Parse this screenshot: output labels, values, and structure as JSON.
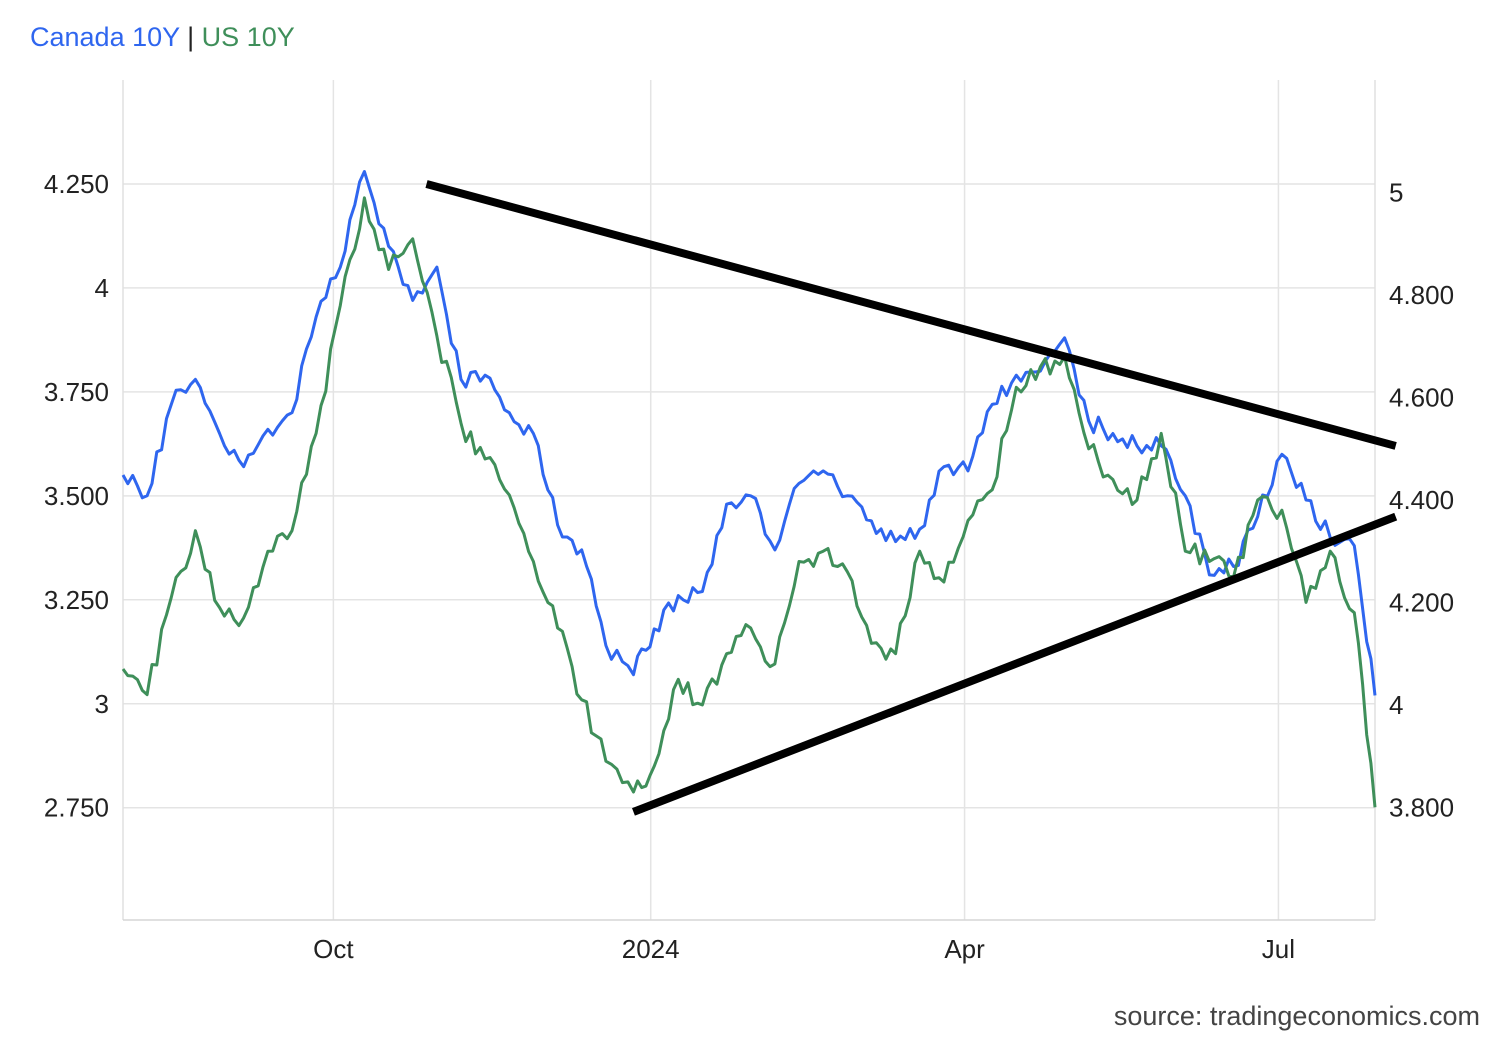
{
  "legend": {
    "separator": " | "
  },
  "source": "source: tradingeconomics.com",
  "chart_data": {
    "type": "line",
    "title": "",
    "x_tick_labels": [
      "Oct",
      "2024",
      "Apr",
      "Jul"
    ],
    "x_tick_dates": [
      "2023-10-01",
      "2024-01-01",
      "2024-04-01",
      "2024-07-01"
    ],
    "x_range": [
      "2023-08-01",
      "2024-07-29"
    ],
    "grid": true,
    "legend_position": "top-left",
    "left_axis": {
      "series": "Canada 10Y",
      "range": [
        2.48,
        4.5
      ],
      "ticks": [
        2.75,
        3,
        3.25,
        3.5,
        3.75,
        4,
        4.25
      ],
      "tick_labels": [
        "2.750",
        "3",
        "3.250",
        "3.500",
        "3.750",
        "4",
        "4.250"
      ]
    },
    "right_axis": {
      "series": "US 10Y",
      "range": [
        3.58,
        5.22
      ],
      "ticks": [
        3.8,
        4,
        4.2,
        4.4,
        4.6,
        4.8,
        5
      ],
      "tick_labels": [
        "3.800",
        "4",
        "4.200",
        "4.400",
        "4.600",
        "4.800",
        "5"
      ]
    },
    "series": [
      {
        "name": "Canada 10Y",
        "axis": "left",
        "color": "#2f66ef",
        "x": [
          "2023-08-01",
          "2023-08-08",
          "2023-08-15",
          "2023-08-22",
          "2023-08-29",
          "2023-09-05",
          "2023-09-12",
          "2023-09-19",
          "2023-09-26",
          "2023-10-03",
          "2023-10-10",
          "2023-10-17",
          "2023-10-24",
          "2023-10-31",
          "2023-11-07",
          "2023-11-14",
          "2023-11-21",
          "2023-11-28",
          "2023-12-05",
          "2023-12-12",
          "2023-12-19",
          "2023-12-27",
          "2024-01-02",
          "2024-01-09",
          "2024-01-16",
          "2024-01-23",
          "2024-01-30",
          "2024-02-06",
          "2024-02-13",
          "2024-02-20",
          "2024-02-27",
          "2024-03-05",
          "2024-03-12",
          "2024-03-19",
          "2024-03-26",
          "2024-04-02",
          "2024-04-09",
          "2024-04-16",
          "2024-04-23",
          "2024-04-30",
          "2024-05-07",
          "2024-05-14",
          "2024-05-21",
          "2024-05-28",
          "2024-06-04",
          "2024-06-11",
          "2024-06-18",
          "2024-06-25",
          "2024-07-02",
          "2024-07-09",
          "2024-07-16",
          "2024-07-23",
          "2024-07-29"
        ],
        "values": [
          3.55,
          3.5,
          3.72,
          3.78,
          3.65,
          3.57,
          3.66,
          3.7,
          3.93,
          4.05,
          4.28,
          4.1,
          3.97,
          4.05,
          3.78,
          3.79,
          3.7,
          3.65,
          3.43,
          3.37,
          3.14,
          3.07,
          3.18,
          3.26,
          3.27,
          3.48,
          3.5,
          3.37,
          3.53,
          3.56,
          3.5,
          3.44,
          3.39,
          3.42,
          3.57,
          3.56,
          3.72,
          3.79,
          3.8,
          3.88,
          3.68,
          3.65,
          3.62,
          3.62,
          3.5,
          3.31,
          3.33,
          3.45,
          3.6,
          3.49,
          3.4,
          3.38,
          3.02
        ]
      },
      {
        "name": "US 10Y",
        "axis": "right",
        "color": "#3f8f5a",
        "x": [
          "2023-08-01",
          "2023-08-08",
          "2023-08-15",
          "2023-08-22",
          "2023-08-29",
          "2023-09-05",
          "2023-09-12",
          "2023-09-19",
          "2023-09-26",
          "2023-10-03",
          "2023-10-10",
          "2023-10-17",
          "2023-10-24",
          "2023-10-31",
          "2023-11-07",
          "2023-11-14",
          "2023-11-21",
          "2023-11-28",
          "2023-12-05",
          "2023-12-12",
          "2023-12-19",
          "2023-12-27",
          "2024-01-02",
          "2024-01-09",
          "2024-01-16",
          "2024-01-23",
          "2024-01-30",
          "2024-02-06",
          "2024-02-13",
          "2024-02-20",
          "2024-02-27",
          "2024-03-05",
          "2024-03-12",
          "2024-03-19",
          "2024-03-26",
          "2024-04-02",
          "2024-04-09",
          "2024-04-16",
          "2024-04-23",
          "2024-04-30",
          "2024-05-07",
          "2024-05-14",
          "2024-05-21",
          "2024-05-28",
          "2024-06-04",
          "2024-06-11",
          "2024-06-18",
          "2024-06-25",
          "2024-07-02",
          "2024-07-09",
          "2024-07-16",
          "2024-07-23",
          "2024-07-29"
        ],
        "values": [
          4.07,
          4.02,
          4.21,
          4.34,
          4.19,
          4.17,
          4.3,
          4.34,
          4.53,
          4.78,
          4.99,
          4.85,
          4.91,
          4.72,
          4.55,
          4.48,
          4.41,
          4.28,
          4.15,
          4.01,
          3.89,
          3.83,
          3.88,
          4.05,
          4.0,
          4.1,
          4.15,
          4.08,
          4.28,
          4.3,
          4.26,
          4.12,
          4.1,
          4.3,
          4.24,
          4.36,
          4.42,
          4.62,
          4.66,
          4.68,
          4.5,
          4.44,
          4.4,
          4.53,
          4.3,
          4.28,
          4.25,
          4.4,
          4.38,
          4.2,
          4.3,
          4.18,
          3.8
        ]
      }
    ],
    "trendlines": [
      {
        "name": "upper",
        "color": "#000000",
        "axis": "left",
        "from": {
          "x": "2023-10-28",
          "y": 4.25
        },
        "to": {
          "x": "2024-08-04",
          "y": 3.62
        }
      },
      {
        "name": "lower",
        "color": "#000000",
        "axis": "left",
        "from": {
          "x": "2023-12-27",
          "y": 2.74
        },
        "to": {
          "x": "2024-08-04",
          "y": 3.45
        }
      }
    ]
  }
}
